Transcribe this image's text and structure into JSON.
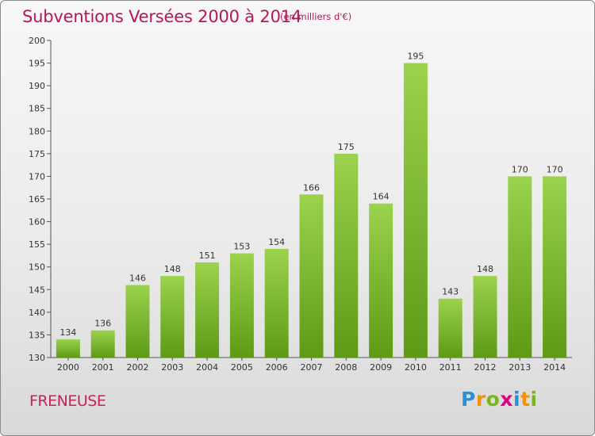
{
  "title": "Subventions Versées 2000 à 2014",
  "unit_note": "(en milliers d'€)",
  "commune": "FRENEUSE",
  "brand": {
    "letters": [
      "P",
      "r",
      "o",
      "x",
      "i",
      "t",
      "i"
    ],
    "colors": [
      "#2b8fd6",
      "#f39200",
      "#7ab51d",
      "#e6007e",
      "#2b8fd6",
      "#f39200",
      "#7ab51d"
    ]
  },
  "colors": {
    "bar_top": "#9bd24e",
    "bar_bottom": "#5e9a16",
    "title": "#b5175b"
  },
  "chart_data": {
    "type": "bar",
    "categories": [
      "2000",
      "2001",
      "2002",
      "2003",
      "2004",
      "2005",
      "2006",
      "2007",
      "2008",
      "2009",
      "2010",
      "2011",
      "2012",
      "2013",
      "2014"
    ],
    "values": [
      134,
      136,
      146,
      148,
      151,
      153,
      154,
      166,
      175,
      164,
      195,
      143,
      148,
      170,
      170
    ],
    "ylim": [
      130,
      200
    ],
    "yticks": [
      130,
      135,
      140,
      145,
      150,
      155,
      160,
      165,
      170,
      175,
      180,
      185,
      190,
      195,
      200
    ],
    "grid": false
  }
}
